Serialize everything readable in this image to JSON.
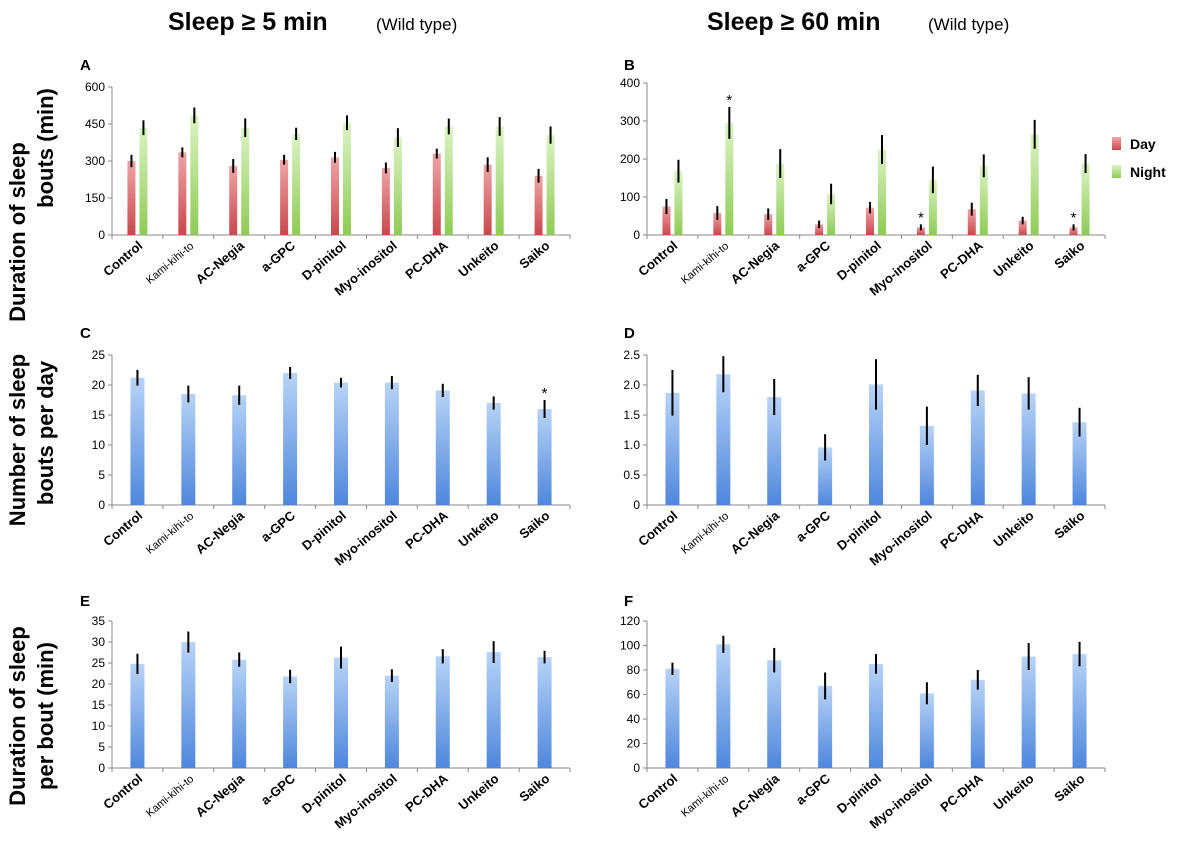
{
  "column_titles": [
    {
      "main": "Sleep ≥ 5 min",
      "sub": "(Wild type)"
    },
    {
      "main": "Sleep ≥ 60 min",
      "sub": "(Wild type)"
    }
  ],
  "row_labels": [
    [
      "Duration of sleep",
      "bouts (min)"
    ],
    [
      "Number of sleep",
      "bouts per day"
    ],
    [
      "Duration of sleep",
      "per bout (min)"
    ]
  ],
  "legend": {
    "day": "Day",
    "night": "Night"
  },
  "colors": {
    "day": "#d9696d",
    "night": "#b6e28a",
    "blue": "#6fa3e8",
    "axis": "#888888"
  },
  "chart_data": [
    {
      "panel": "A",
      "type": "bar",
      "categories": [
        "Control",
        "Kami-kihi-to",
        "AC-Negia",
        "a-GPC",
        "D-pinitol",
        "Myo-inositol",
        "PC-DHA",
        "Unkeito",
        "Saiko"
      ],
      "yticks": [
        0,
        150,
        300,
        450,
        600
      ],
      "ylim": [
        0,
        600
      ],
      "series": [
        {
          "name": "Day",
          "values": [
            300,
            335,
            280,
            305,
            315,
            272,
            330,
            285,
            240
          ],
          "errors": [
            25,
            20,
            28,
            20,
            22,
            22,
            20,
            30,
            28
          ]
        },
        {
          "name": "Night",
          "values": [
            435,
            485,
            435,
            410,
            455,
            395,
            440,
            440,
            405
          ],
          "errors": [
            30,
            32,
            38,
            25,
            30,
            38,
            32,
            38,
            35
          ]
        }
      ],
      "stars": []
    },
    {
      "panel": "B",
      "type": "bar",
      "categories": [
        "Control",
        "Kami-kihi-to",
        "AC-Negia",
        "a-GPC",
        "D-pinitol",
        "Myo-inositol",
        "PC-DHA",
        "Unkeito",
        "Saiko"
      ],
      "yticks": [
        0,
        100,
        200,
        300,
        400
      ],
      "ylim": [
        0,
        400
      ],
      "series": [
        {
          "name": "Day",
          "values": [
            75,
            58,
            55,
            28,
            72,
            20,
            68,
            38,
            20
          ],
          "errors": [
            20,
            18,
            15,
            10,
            15,
            8,
            17,
            10,
            8
          ]
        },
        {
          "name": "Night",
          "values": [
            168,
            295,
            188,
            108,
            225,
            145,
            182,
            265,
            188
          ],
          "errors": [
            30,
            42,
            38,
            27,
            38,
            35,
            30,
            38,
            25
          ]
        }
      ],
      "stars": [
        {
          "category": "Kami-kihi-to",
          "series": "Night",
          "text": "*"
        },
        {
          "category": "Myo-inositol",
          "series": "Day",
          "text": "*"
        },
        {
          "category": "Saiko",
          "series": "Day",
          "text": "*"
        }
      ]
    },
    {
      "panel": "C",
      "type": "bar",
      "categories": [
        "Control",
        "Kami-kihi-to",
        "AC-Negia",
        "a-GPC",
        "D-pinitol",
        "Myo-inositol",
        "PC-DHA",
        "Unkeito",
        "Saiko"
      ],
      "yticks": [
        0,
        5,
        10,
        15,
        20,
        25
      ],
      "ylim": [
        0,
        25
      ],
      "series": [
        {
          "name": "Sleep bouts",
          "values": [
            21.2,
            18.5,
            18.3,
            22.0,
            20.4,
            20.4,
            19.1,
            17.0,
            16.0
          ],
          "errors": [
            1.3,
            1.4,
            1.6,
            1.0,
            0.8,
            1.1,
            1.1,
            1.1,
            1.5
          ]
        }
      ],
      "stars": [
        {
          "category": "Saiko",
          "series": "Sleep bouts",
          "text": "*"
        }
      ]
    },
    {
      "panel": "D",
      "type": "bar",
      "categories": [
        "Control",
        "Kami-kihi-to",
        "AC-Negia",
        "a-GPC",
        "D-pinitol",
        "Myo-inositol",
        "PC-DHA",
        "Unkeito",
        "Saiko"
      ],
      "yticks": [
        "0",
        "0.5",
        "1.0",
        "1.5",
        "2.0",
        "2.5"
      ],
      "ylim": [
        0,
        2.5
      ],
      "series": [
        {
          "name": "Sleep bouts",
          "values": [
            1.87,
            2.18,
            1.8,
            0.96,
            2.01,
            1.32,
            1.91,
            1.86,
            1.38
          ],
          "errors": [
            0.38,
            0.3,
            0.3,
            0.22,
            0.42,
            0.32,
            0.26,
            0.27,
            0.24
          ]
        }
      ],
      "stars": []
    },
    {
      "panel": "E",
      "type": "bar",
      "categories": [
        "Control",
        "Kami-kihi-to",
        "AC-Negia",
        "a-GPC",
        "D-pinitol",
        "Myo-inositol",
        "PC-DHA",
        "Unkeito",
        "Saiko"
      ],
      "yticks": [
        0,
        5,
        10,
        15,
        20,
        25,
        30,
        35
      ],
      "ylim": [
        0,
        35
      ],
      "series": [
        {
          "name": "Duration per bout",
          "values": [
            24.8,
            30.0,
            25.8,
            21.8,
            26.3,
            22.0,
            26.6,
            27.6,
            26.4
          ],
          "errors": [
            2.4,
            2.5,
            1.7,
            1.6,
            2.6,
            1.5,
            1.7,
            2.6,
            1.5
          ]
        }
      ],
      "stars": []
    },
    {
      "panel": "F",
      "type": "bar",
      "categories": [
        "Control",
        "Kami-kihi-to",
        "AC-Negia",
        "a-GPC",
        "D-pinitol",
        "Myo-inositol",
        "PC-DHA",
        "Unkeito",
        "Saiko"
      ],
      "yticks": [
        0,
        20,
        40,
        60,
        80,
        100,
        120
      ],
      "ylim": [
        0,
        120
      ],
      "series": [
        {
          "name": "Duration per bout",
          "values": [
            81,
            101,
            88,
            67,
            85,
            61,
            72,
            91,
            93
          ],
          "errors": [
            5,
            7,
            10,
            11,
            8,
            9,
            8,
            11,
            10
          ]
        }
      ],
      "stars": []
    }
  ]
}
